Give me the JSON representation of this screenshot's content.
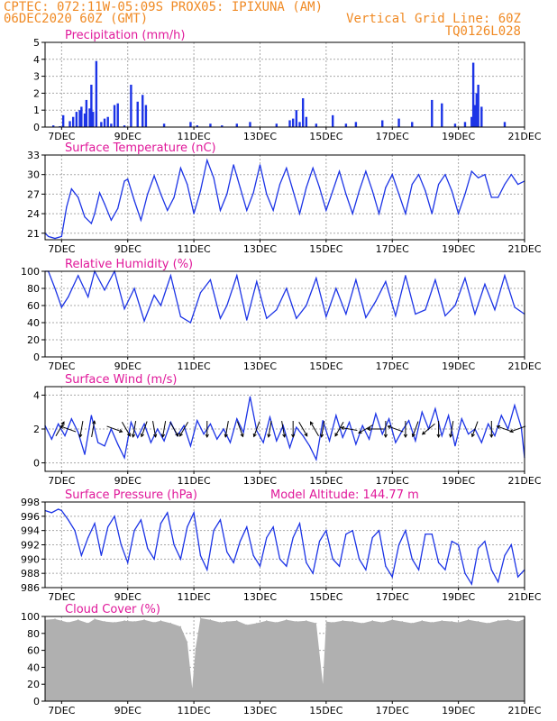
{
  "header": {
    "line1": "CPTEC:   072:11W-05:09S   PROX05: IPIXUNA (AM)",
    "line2_left": "06DEC2020 60Z (GMT)",
    "line2_right": "Vertical Grid Line: 60Z",
    "line3_right": "TQ0126L028",
    "color": "#f08a24"
  },
  "x_axis": {
    "range_days": [
      6.5,
      21
    ],
    "tick_labels": [
      "7DEC",
      "9DEC",
      "11DEC",
      "13DEC",
      "15DEC",
      "17DEC",
      "19DEC",
      "21DEC"
    ],
    "tick_positions_days": [
      7,
      9,
      11,
      13,
      15,
      17,
      19,
      21
    ]
  },
  "colors": {
    "title": "#e0189a",
    "series": "#1c34e6",
    "cloud": "#b0b0b0",
    "grid": "#a8a8a8"
  },
  "chart_data": [
    {
      "type": "bar",
      "title": "Precipitation (mm/h)",
      "ylim": [
        0,
        5
      ],
      "yticks": [
        0,
        1,
        2,
        3,
        4,
        5
      ],
      "x": [
        6.75,
        6.95,
        7.05,
        7.25,
        7.35,
        7.45,
        7.55,
        7.6,
        7.7,
        7.75,
        7.85,
        7.9,
        7.95,
        8.05,
        8.2,
        8.3,
        8.4,
        8.5,
        8.6,
        8.7,
        8.9,
        9.1,
        9.3,
        9.45,
        9.55,
        10.1,
        10.9,
        11.1,
        11.5,
        11.85,
        12.3,
        12.7,
        13.5,
        13.9,
        14.0,
        14.1,
        14.2,
        14.3,
        14.4,
        14.7,
        15.2,
        15.6,
        15.9,
        16.7,
        17.2,
        17.6,
        18.2,
        18.5,
        18.9,
        19.2,
        19.4,
        19.45,
        19.5,
        19.55,
        19.6,
        19.7,
        20.4
      ],
      "values": [
        0.1,
        0.05,
        0.7,
        0.35,
        0.6,
        0.9,
        1.0,
        1.2,
        0.8,
        1.6,
        1.1,
        2.5,
        0.9,
        3.9,
        0.3,
        0.5,
        0.6,
        0.2,
        1.3,
        1.4,
        0.1,
        2.5,
        1.5,
        1.9,
        1.3,
        0.2,
        0.3,
        0.1,
        0.2,
        0.1,
        0.2,
        0.3,
        0.2,
        0.4,
        0.5,
        1.0,
        0.3,
        1.7,
        0.6,
        0.2,
        0.7,
        0.2,
        0.3,
        0.4,
        0.5,
        0.3,
        1.6,
        1.4,
        0.2,
        0.3,
        0.6,
        3.8,
        1.3,
        2.0,
        2.5,
        1.2,
        0.3
      ],
      "note_x_units": "day of December 2020"
    },
    {
      "type": "line",
      "title": "Surface Temperature (nC)",
      "ylim": [
        20,
        33
      ],
      "yticks": [
        21,
        24,
        27,
        30,
        33
      ],
      "x": [
        6.5,
        6.6,
        6.8,
        7.0,
        7.15,
        7.3,
        7.5,
        7.7,
        7.9,
        8.0,
        8.15,
        8.3,
        8.5,
        8.7,
        8.9,
        9.0,
        9.2,
        9.4,
        9.6,
        9.8,
        10.0,
        10.2,
        10.4,
        10.6,
        10.8,
        11.0,
        11.2,
        11.4,
        11.6,
        11.8,
        12.0,
        12.2,
        12.4,
        12.6,
        12.8,
        13.0,
        13.2,
        13.4,
        13.6,
        13.8,
        14.0,
        14.2,
        14.4,
        14.6,
        14.8,
        15.0,
        15.2,
        15.4,
        15.6,
        15.8,
        16.0,
        16.2,
        16.4,
        16.6,
        16.8,
        17.0,
        17.2,
        17.4,
        17.6,
        17.8,
        18.0,
        18.2,
        18.4,
        18.6,
        18.8,
        19.0,
        19.2,
        19.4,
        19.6,
        19.8,
        20.0,
        20.2,
        20.4,
        20.6,
        20.8,
        21.0
      ],
      "values": [
        21.0,
        20.5,
        20.2,
        20.5,
        25.0,
        27.8,
        26.5,
        23.5,
        22.5,
        24.0,
        27.2,
        25.5,
        23.0,
        24.8,
        29.0,
        29.3,
        26.0,
        23.0,
        27.0,
        29.8,
        27.0,
        24.5,
        26.5,
        31.0,
        28.5,
        24.0,
        27.5,
        32.2,
        29.5,
        24.5,
        27.0,
        31.5,
        28.0,
        24.5,
        27.2,
        31.5,
        27.0,
        24.5,
        28.5,
        31.0,
        27.5,
        24.0,
        28.0,
        31.0,
        28.0,
        24.5,
        27.5,
        30.5,
        27.0,
        24.0,
        27.5,
        30.5,
        27.5,
        24.0,
        28.0,
        30.0,
        27.0,
        24.0,
        28.5,
        30.0,
        27.5,
        24.0,
        28.5,
        30.0,
        27.5,
        24.0,
        27.0,
        30.5,
        29.5,
        30.0,
        26.5,
        26.5,
        28.5,
        30.0,
        28.5,
        29.0
      ]
    },
    {
      "type": "line",
      "title": "Relative Humidity (%)",
      "ylim": [
        0,
        100
      ],
      "yticks": [
        0,
        20,
        40,
        60,
        80,
        100
      ],
      "x": [
        6.5,
        6.6,
        6.8,
        7.0,
        7.2,
        7.5,
        7.8,
        8.0,
        8.3,
        8.6,
        8.9,
        9.2,
        9.5,
        9.8,
        10.0,
        10.3,
        10.6,
        10.9,
        11.2,
        11.5,
        11.8,
        12.0,
        12.3,
        12.6,
        12.9,
        13.2,
        13.5,
        13.8,
        14.1,
        14.4,
        14.7,
        15.0,
        15.3,
        15.6,
        15.9,
        16.2,
        16.5,
        16.8,
        17.1,
        17.4,
        17.7,
        18.0,
        18.3,
        18.6,
        18.9,
        19.2,
        19.5,
        19.8,
        20.1,
        20.4,
        20.7,
        21.0
      ],
      "values": [
        100,
        100,
        80,
        58,
        70,
        95,
        70,
        100,
        78,
        100,
        56,
        80,
        42,
        72,
        60,
        95,
        47,
        40,
        75,
        90,
        45,
        60,
        95,
        43,
        88,
        45,
        55,
        80,
        45,
        60,
        92,
        47,
        80,
        50,
        90,
        46,
        65,
        88,
        48,
        95,
        50,
        55,
        90,
        48,
        60,
        92,
        50,
        85,
        55,
        95,
        58,
        50
      ]
    },
    {
      "type": "line",
      "title": "Surface Wind (m/s)",
      "ylim": [
        -0.5,
        4.5
      ],
      "yticks": [
        0,
        2,
        4
      ],
      "x": [
        6.5,
        6.7,
        6.9,
        7.1,
        7.3,
        7.5,
        7.7,
        7.9,
        8.1,
        8.3,
        8.5,
        8.7,
        8.9,
        9.1,
        9.3,
        9.5,
        9.7,
        9.9,
        10.1,
        10.3,
        10.5,
        10.7,
        10.9,
        11.1,
        11.3,
        11.5,
        11.7,
        11.9,
        12.1,
        12.3,
        12.5,
        12.7,
        12.9,
        13.1,
        13.3,
        13.5,
        13.7,
        13.9,
        14.1,
        14.3,
        14.5,
        14.7,
        14.9,
        15.1,
        15.3,
        15.5,
        15.7,
        15.9,
        16.1,
        16.3,
        16.5,
        16.7,
        16.9,
        17.1,
        17.3,
        17.5,
        17.7,
        17.9,
        18.1,
        18.3,
        18.5,
        18.7,
        18.9,
        19.1,
        19.3,
        19.5,
        19.7,
        19.9,
        20.1,
        20.3,
        20.5,
        20.7,
        20.9,
        21.0
      ],
      "values": [
        2.2,
        1.4,
        2.3,
        1.6,
        2.6,
        1.8,
        0.5,
        2.8,
        1.2,
        1.0,
        2.0,
        1.1,
        0.3,
        2.4,
        1.5,
        2.3,
        1.2,
        2.0,
        1.3,
        2.4,
        1.6,
        2.2,
        1.0,
        2.5,
        1.7,
        2.3,
        1.4,
        2.0,
        1.2,
        2.6,
        1.8,
        3.9,
        1.9,
        1.2,
        2.7,
        1.3,
        2.2,
        0.9,
        2.1,
        1.6,
        1.0,
        0.2,
        2.5,
        1.3,
        2.8,
        1.5,
        2.4,
        1.1,
        2.2,
        1.4,
        2.9,
        1.7,
        2.6,
        1.2,
        1.9,
        2.5,
        1.3,
        3.0,
        2.0,
        3.2,
        1.6,
        2.8,
        1.0,
        2.6,
        1.7,
        2.0,
        1.2,
        2.3,
        1.6,
        2.8,
        2.0,
        3.4,
        2.1,
        0.3
      ],
      "arrows": [
        {
          "x": 6.95,
          "angle": -60
        },
        {
          "x": 7.2,
          "angle": 200
        },
        {
          "x": 7.6,
          "angle": 100
        },
        {
          "x": 7.95,
          "angle": -80
        },
        {
          "x": 8.6,
          "angle": 20
        },
        {
          "x": 8.95,
          "angle": 60
        },
        {
          "x": 9.2,
          "angle": 100
        },
        {
          "x": 9.5,
          "angle": 110
        },
        {
          "x": 9.8,
          "angle": 80
        },
        {
          "x": 10.1,
          "angle": 100
        },
        {
          "x": 10.4,
          "angle": 60
        },
        {
          "x": 10.7,
          "angle": 120
        },
        {
          "x": 11.4,
          "angle": 90
        },
        {
          "x": 12.0,
          "angle": 100
        },
        {
          "x": 12.4,
          "angle": 70
        },
        {
          "x": 12.9,
          "angle": 110
        },
        {
          "x": 13.3,
          "angle": 100
        },
        {
          "x": 13.7,
          "angle": 80
        },
        {
          "x": 14.0,
          "angle": 90
        },
        {
          "x": 14.3,
          "angle": 60
        },
        {
          "x": 14.65,
          "angle": -120
        },
        {
          "x": 14.9,
          "angle": 100
        },
        {
          "x": 15.4,
          "angle": 120
        },
        {
          "x": 15.7,
          "angle": -170
        },
        {
          "x": 16.2,
          "angle": 150
        },
        {
          "x": 16.5,
          "angle": 180
        },
        {
          "x": 16.8,
          "angle": 90
        },
        {
          "x": 17.1,
          "angle": 200
        },
        {
          "x": 17.4,
          "angle": 90
        },
        {
          "x": 17.7,
          "angle": 110
        },
        {
          "x": 18.1,
          "angle": 140
        },
        {
          "x": 18.4,
          "angle": 90
        },
        {
          "x": 18.8,
          "angle": 100
        },
        {
          "x": 19.5,
          "angle": 110
        },
        {
          "x": 20.0,
          "angle": 90
        },
        {
          "x": 20.4,
          "angle": 200
        },
        {
          "x": 20.8,
          "angle": 160
        }
      ]
    },
    {
      "type": "line",
      "title": "Surface Pressure (hPa)",
      "annotation": "Model Altitude: 144.77 m",
      "ylim": [
        986,
        998
      ],
      "yticks": [
        986,
        988,
        990,
        992,
        994,
        996,
        998
      ],
      "x": [
        6.5,
        6.7,
        6.9,
        7.0,
        7.2,
        7.4,
        7.6,
        7.8,
        8.0,
        8.2,
        8.4,
        8.6,
        8.8,
        9.0,
        9.2,
        9.4,
        9.6,
        9.8,
        10.0,
        10.2,
        10.4,
        10.6,
        10.8,
        11.0,
        11.2,
        11.4,
        11.6,
        11.8,
        12.0,
        12.2,
        12.4,
        12.6,
        12.8,
        13.0,
        13.2,
        13.4,
        13.6,
        13.8,
        14.0,
        14.2,
        14.4,
        14.6,
        14.8,
        15.0,
        15.2,
        15.4,
        15.6,
        15.8,
        16.0,
        16.2,
        16.4,
        16.6,
        16.8,
        17.0,
        17.2,
        17.4,
        17.6,
        17.8,
        18.0,
        18.2,
        18.4,
        18.6,
        18.8,
        19.0,
        19.2,
        19.4,
        19.6,
        19.8,
        20.0,
        20.2,
        20.4,
        20.6,
        20.8,
        21.0
      ],
      "values": [
        996.8,
        996.5,
        997.0,
        996.8,
        995.5,
        994.0,
        990.5,
        993.0,
        995.0,
        990.5,
        994.5,
        996.0,
        992.0,
        989.5,
        994.0,
        995.5,
        991.5,
        990.0,
        995.0,
        996.5,
        992.0,
        990.0,
        994.5,
        996.5,
        990.5,
        988.5,
        994.0,
        995.5,
        991.0,
        989.5,
        992.5,
        994.5,
        990.5,
        989.0,
        993.0,
        994.5,
        990.0,
        989.0,
        993.0,
        995.0,
        989.5,
        988.0,
        992.5,
        994.0,
        990.0,
        989.0,
        993.5,
        994.0,
        990.0,
        988.5,
        993.0,
        994.0,
        989.0,
        987.5,
        992.0,
        994.0,
        990.0,
        988.5,
        993.5,
        993.5,
        989.5,
        988.5,
        992.5,
        992.0,
        988.0,
        986.5,
        991.5,
        992.5,
        988.5,
        986.8,
        990.5,
        992.0,
        987.5,
        988.5
      ]
    },
    {
      "type": "area",
      "title": "Cloud Cover (%)",
      "ylim": [
        0,
        100
      ],
      "yticks": [
        0,
        20,
        40,
        60,
        80,
        100
      ],
      "x": [
        6.5,
        6.8,
        7.0,
        7.2,
        7.5,
        7.8,
        8.0,
        8.3,
        8.6,
        8.9,
        9.2,
        9.5,
        9.8,
        10.0,
        10.3,
        10.6,
        10.8,
        10.95,
        11.05,
        11.2,
        11.5,
        11.8,
        12.0,
        12.3,
        12.6,
        12.9,
        13.2,
        13.5,
        13.8,
        14.1,
        14.4,
        14.7,
        14.9,
        15.0,
        15.2,
        15.5,
        15.8,
        16.1,
        16.4,
        16.7,
        17.0,
        17.3,
        17.6,
        17.9,
        18.2,
        18.5,
        18.8,
        19.0,
        19.3,
        19.6,
        19.9,
        20.2,
        20.5,
        20.8,
        21.0
      ],
      "values": [
        96,
        97,
        95,
        93,
        96,
        92,
        97,
        94,
        93,
        95,
        94,
        96,
        93,
        95,
        92,
        88,
        70,
        15,
        62,
        98,
        96,
        93,
        94,
        95,
        90,
        92,
        95,
        93,
        96,
        94,
        95,
        92,
        20,
        94,
        93,
        95,
        94,
        92,
        95,
        93,
        96,
        94,
        92,
        95,
        93,
        95,
        94,
        93,
        96,
        94,
        92,
        95,
        96,
        94,
        97
      ]
    }
  ]
}
